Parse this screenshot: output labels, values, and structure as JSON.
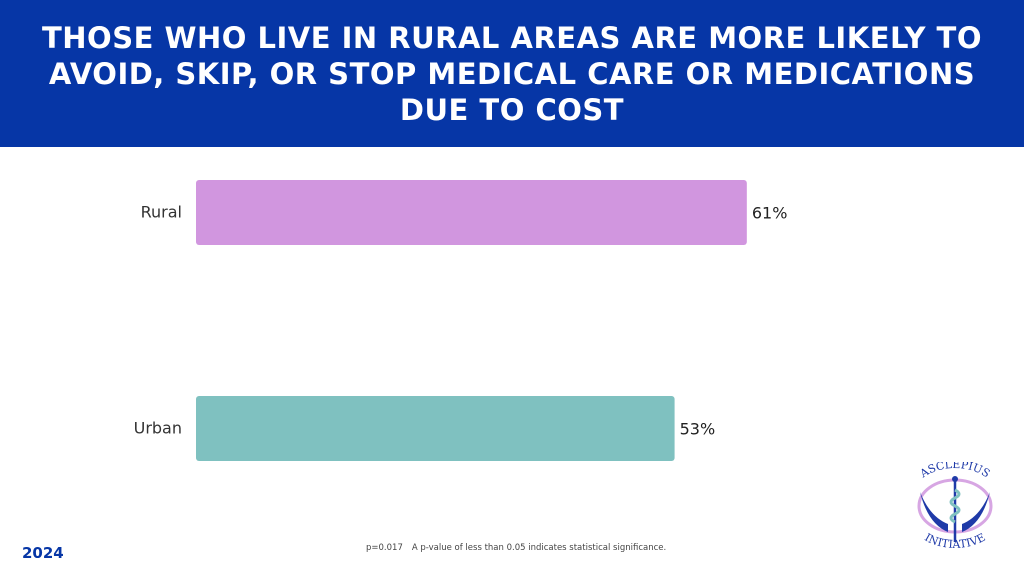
{
  "chart_data": {
    "type": "bar",
    "orientation": "horizontal",
    "title": "Those who live in rural areas are more likely to avoid, skip, or stop medical care or medications due to cost",
    "categories": [
      "Rural",
      "Urban"
    ],
    "values": [
      61,
      53
    ],
    "value_labels": [
      "61%",
      "53%"
    ],
    "colors": [
      "#d196df",
      "#7fc1c0"
    ],
    "xlim": [
      0,
      100
    ],
    "grid": false,
    "xlabel": "",
    "ylabel": ""
  },
  "footer": {
    "year": "2024",
    "p_value": "p=0.017",
    "note": "A p-value of less than 0.05 indicates statistical significance."
  },
  "logo": {
    "top_text": "ASCLEPIUS",
    "bottom_text": "INITIATIVE"
  },
  "colors": {
    "header": "#0636a6"
  }
}
